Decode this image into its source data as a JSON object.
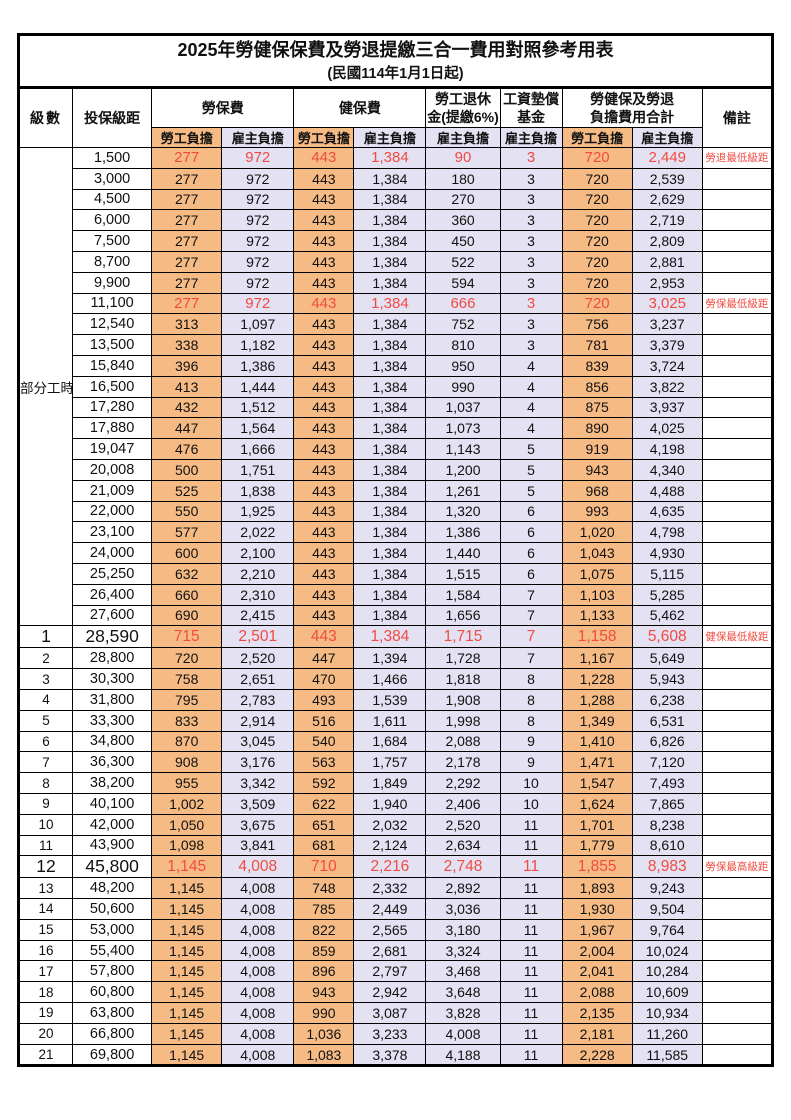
{
  "title": "2025年勞健保保費及勞退提繳三合一費用對照參考用表",
  "subtitle": "(民國114年1月1日起)",
  "colors": {
    "employee_bg": "#F6BB84",
    "employer_bg": "#E3E1F2",
    "highlight_red": "#F14B41",
    "border": "#000000"
  },
  "header": {
    "level": "級數",
    "bracket": "投保級距",
    "labor_ins": "勞保費",
    "health_ins": "健保費",
    "pension_line1": "勞工退休",
    "pension_line2": "金(提繳6%)",
    "arrears_line1": "工資墊償",
    "arrears_line2": "基金",
    "total_line1": "勞健保及勞退",
    "total_line2": "負擔費用合計",
    "emp": "勞工負擔",
    "er": "雇主負擔",
    "note": "備註"
  },
  "part_time_label": "部分工時",
  "part_time_rowspan": 23,
  "rows": [
    {
      "level": "",
      "bracket": "1,500",
      "li_emp": "277",
      "li_er": "972",
      "hi_emp": "443",
      "hi_er": "1,384",
      "pension": "90",
      "arrears": "3",
      "tot_emp": "720",
      "tot_er": "2,449",
      "note": "勞退最低級距",
      "red": true,
      "key": false
    },
    {
      "level": "",
      "bracket": "3,000",
      "li_emp": "277",
      "li_er": "972",
      "hi_emp": "443",
      "hi_er": "1,384",
      "pension": "180",
      "arrears": "3",
      "tot_emp": "720",
      "tot_er": "2,539",
      "note": "",
      "red": false,
      "key": false
    },
    {
      "level": "",
      "bracket": "4,500",
      "li_emp": "277",
      "li_er": "972",
      "hi_emp": "443",
      "hi_er": "1,384",
      "pension": "270",
      "arrears": "3",
      "tot_emp": "720",
      "tot_er": "2,629",
      "note": "",
      "red": false,
      "key": false
    },
    {
      "level": "",
      "bracket": "6,000",
      "li_emp": "277",
      "li_er": "972",
      "hi_emp": "443",
      "hi_er": "1,384",
      "pension": "360",
      "arrears": "3",
      "tot_emp": "720",
      "tot_er": "2,719",
      "note": "",
      "red": false,
      "key": false
    },
    {
      "level": "",
      "bracket": "7,500",
      "li_emp": "277",
      "li_er": "972",
      "hi_emp": "443",
      "hi_er": "1,384",
      "pension": "450",
      "arrears": "3",
      "tot_emp": "720",
      "tot_er": "2,809",
      "note": "",
      "red": false,
      "key": false
    },
    {
      "level": "",
      "bracket": "8,700",
      "li_emp": "277",
      "li_er": "972",
      "hi_emp": "443",
      "hi_er": "1,384",
      "pension": "522",
      "arrears": "3",
      "tot_emp": "720",
      "tot_er": "2,881",
      "note": "",
      "red": false,
      "key": false
    },
    {
      "level": "",
      "bracket": "9,900",
      "li_emp": "277",
      "li_er": "972",
      "hi_emp": "443",
      "hi_er": "1,384",
      "pension": "594",
      "arrears": "3",
      "tot_emp": "720",
      "tot_er": "2,953",
      "note": "",
      "red": false,
      "key": false
    },
    {
      "level": "",
      "bracket": "11,100",
      "li_emp": "277",
      "li_er": "972",
      "hi_emp": "443",
      "hi_er": "1,384",
      "pension": "666",
      "arrears": "3",
      "tot_emp": "720",
      "tot_er": "3,025",
      "note": "勞保最低級距",
      "red": true,
      "key": false
    },
    {
      "level": "",
      "bracket": "12,540",
      "li_emp": "313",
      "li_er": "1,097",
      "hi_emp": "443",
      "hi_er": "1,384",
      "pension": "752",
      "arrears": "3",
      "tot_emp": "756",
      "tot_er": "3,237",
      "note": "",
      "red": false,
      "key": false
    },
    {
      "level": "",
      "bracket": "13,500",
      "li_emp": "338",
      "li_er": "1,182",
      "hi_emp": "443",
      "hi_er": "1,384",
      "pension": "810",
      "arrears": "3",
      "tot_emp": "781",
      "tot_er": "3,379",
      "note": "",
      "red": false,
      "key": false
    },
    {
      "level": "",
      "bracket": "15,840",
      "li_emp": "396",
      "li_er": "1,386",
      "hi_emp": "443",
      "hi_er": "1,384",
      "pension": "950",
      "arrears": "4",
      "tot_emp": "839",
      "tot_er": "3,724",
      "note": "",
      "red": false,
      "key": false
    },
    {
      "level": "",
      "bracket": "16,500",
      "li_emp": "413",
      "li_er": "1,444",
      "hi_emp": "443",
      "hi_er": "1,384",
      "pension": "990",
      "arrears": "4",
      "tot_emp": "856",
      "tot_er": "3,822",
      "note": "",
      "red": false,
      "key": false
    },
    {
      "level": "",
      "bracket": "17,280",
      "li_emp": "432",
      "li_er": "1,512",
      "hi_emp": "443",
      "hi_er": "1,384",
      "pension": "1,037",
      "arrears": "4",
      "tot_emp": "875",
      "tot_er": "3,937",
      "note": "",
      "red": false,
      "key": false
    },
    {
      "level": "",
      "bracket": "17,880",
      "li_emp": "447",
      "li_er": "1,564",
      "hi_emp": "443",
      "hi_er": "1,384",
      "pension": "1,073",
      "arrears": "4",
      "tot_emp": "890",
      "tot_er": "4,025",
      "note": "",
      "red": false,
      "key": false
    },
    {
      "level": "",
      "bracket": "19,047",
      "li_emp": "476",
      "li_er": "1,666",
      "hi_emp": "443",
      "hi_er": "1,384",
      "pension": "1,143",
      "arrears": "5",
      "tot_emp": "919",
      "tot_er": "4,198",
      "note": "",
      "red": false,
      "key": false
    },
    {
      "level": "",
      "bracket": "20,008",
      "li_emp": "500",
      "li_er": "1,751",
      "hi_emp": "443",
      "hi_er": "1,384",
      "pension": "1,200",
      "arrears": "5",
      "tot_emp": "943",
      "tot_er": "4,340",
      "note": "",
      "red": false,
      "key": false
    },
    {
      "level": "",
      "bracket": "21,009",
      "li_emp": "525",
      "li_er": "1,838",
      "hi_emp": "443",
      "hi_er": "1,384",
      "pension": "1,261",
      "arrears": "5",
      "tot_emp": "968",
      "tot_er": "4,488",
      "note": "",
      "red": false,
      "key": false
    },
    {
      "level": "",
      "bracket": "22,000",
      "li_emp": "550",
      "li_er": "1,925",
      "hi_emp": "443",
      "hi_er": "1,384",
      "pension": "1,320",
      "arrears": "6",
      "tot_emp": "993",
      "tot_er": "4,635",
      "note": "",
      "red": false,
      "key": false
    },
    {
      "level": "",
      "bracket": "23,100",
      "li_emp": "577",
      "li_er": "2,022",
      "hi_emp": "443",
      "hi_er": "1,384",
      "pension": "1,386",
      "arrears": "6",
      "tot_emp": "1,020",
      "tot_er": "4,798",
      "note": "",
      "red": false,
      "key": false
    },
    {
      "level": "",
      "bracket": "24,000",
      "li_emp": "600",
      "li_er": "2,100",
      "hi_emp": "443",
      "hi_er": "1,384",
      "pension": "1,440",
      "arrears": "6",
      "tot_emp": "1,043",
      "tot_er": "4,930",
      "note": "",
      "red": false,
      "key": false
    },
    {
      "level": "",
      "bracket": "25,250",
      "li_emp": "632",
      "li_er": "2,210",
      "hi_emp": "443",
      "hi_er": "1,384",
      "pension": "1,515",
      "arrears": "6",
      "tot_emp": "1,075",
      "tot_er": "5,115",
      "note": "",
      "red": false,
      "key": false
    },
    {
      "level": "",
      "bracket": "26,400",
      "li_emp": "660",
      "li_er": "2,310",
      "hi_emp": "443",
      "hi_er": "1,384",
      "pension": "1,584",
      "arrears": "7",
      "tot_emp": "1,103",
      "tot_er": "5,285",
      "note": "",
      "red": false,
      "key": false
    },
    {
      "level": "",
      "bracket": "27,600",
      "li_emp": "690",
      "li_er": "2,415",
      "hi_emp": "443",
      "hi_er": "1,384",
      "pension": "1,656",
      "arrears": "7",
      "tot_emp": "1,133",
      "tot_er": "5,462",
      "note": "",
      "red": false,
      "key": false
    },
    {
      "level": "1",
      "bracket": "28,590",
      "li_emp": "715",
      "li_er": "2,501",
      "hi_emp": "443",
      "hi_er": "1,384",
      "pension": "1,715",
      "arrears": "7",
      "tot_emp": "1,158",
      "tot_er": "5,608",
      "note": "健保最低級距",
      "red": true,
      "key": true
    },
    {
      "level": "2",
      "bracket": "28,800",
      "li_emp": "720",
      "li_er": "2,520",
      "hi_emp": "447",
      "hi_er": "1,394",
      "pension": "1,728",
      "arrears": "7",
      "tot_emp": "1,167",
      "tot_er": "5,649",
      "note": "",
      "red": false,
      "key": false
    },
    {
      "level": "3",
      "bracket": "30,300",
      "li_emp": "758",
      "li_er": "2,651",
      "hi_emp": "470",
      "hi_er": "1,466",
      "pension": "1,818",
      "arrears": "8",
      "tot_emp": "1,228",
      "tot_er": "5,943",
      "note": "",
      "red": false,
      "key": false
    },
    {
      "level": "4",
      "bracket": "31,800",
      "li_emp": "795",
      "li_er": "2,783",
      "hi_emp": "493",
      "hi_er": "1,539",
      "pension": "1,908",
      "arrears": "8",
      "tot_emp": "1,288",
      "tot_er": "6,238",
      "note": "",
      "red": false,
      "key": false
    },
    {
      "level": "5",
      "bracket": "33,300",
      "li_emp": "833",
      "li_er": "2,914",
      "hi_emp": "516",
      "hi_er": "1,611",
      "pension": "1,998",
      "arrears": "8",
      "tot_emp": "1,349",
      "tot_er": "6,531",
      "note": "",
      "red": false,
      "key": false
    },
    {
      "level": "6",
      "bracket": "34,800",
      "li_emp": "870",
      "li_er": "3,045",
      "hi_emp": "540",
      "hi_er": "1,684",
      "pension": "2,088",
      "arrears": "9",
      "tot_emp": "1,410",
      "tot_er": "6,826",
      "note": "",
      "red": false,
      "key": false
    },
    {
      "level": "7",
      "bracket": "36,300",
      "li_emp": "908",
      "li_er": "3,176",
      "hi_emp": "563",
      "hi_er": "1,757",
      "pension": "2,178",
      "arrears": "9",
      "tot_emp": "1,471",
      "tot_er": "7,120",
      "note": "",
      "red": false,
      "key": false
    },
    {
      "level": "8",
      "bracket": "38,200",
      "li_emp": "955",
      "li_er": "3,342",
      "hi_emp": "592",
      "hi_er": "1,849",
      "pension": "2,292",
      "arrears": "10",
      "tot_emp": "1,547",
      "tot_er": "7,493",
      "note": "",
      "red": false,
      "key": false
    },
    {
      "level": "9",
      "bracket": "40,100",
      "li_emp": "1,002",
      "li_er": "3,509",
      "hi_emp": "622",
      "hi_er": "1,940",
      "pension": "2,406",
      "arrears": "10",
      "tot_emp": "1,624",
      "tot_er": "7,865",
      "note": "",
      "red": false,
      "key": false
    },
    {
      "level": "10",
      "bracket": "42,000",
      "li_emp": "1,050",
      "li_er": "3,675",
      "hi_emp": "651",
      "hi_er": "2,032",
      "pension": "2,520",
      "arrears": "11",
      "tot_emp": "1,701",
      "tot_er": "8,238",
      "note": "",
      "red": false,
      "key": false
    },
    {
      "level": "11",
      "bracket": "43,900",
      "li_emp": "1,098",
      "li_er": "3,841",
      "hi_emp": "681",
      "hi_er": "2,124",
      "pension": "2,634",
      "arrears": "11",
      "tot_emp": "1,779",
      "tot_er": "8,610",
      "note": "",
      "red": false,
      "key": false
    },
    {
      "level": "12",
      "bracket": "45,800",
      "li_emp": "1,145",
      "li_er": "4,008",
      "hi_emp": "710",
      "hi_er": "2,216",
      "pension": "2,748",
      "arrears": "11",
      "tot_emp": "1,855",
      "tot_er": "8,983",
      "note": "勞保最高級距",
      "red": true,
      "key": true
    },
    {
      "level": "13",
      "bracket": "48,200",
      "li_emp": "1,145",
      "li_er": "4,008",
      "hi_emp": "748",
      "hi_er": "2,332",
      "pension": "2,892",
      "arrears": "11",
      "tot_emp": "1,893",
      "tot_er": "9,243",
      "note": "",
      "red": false,
      "key": false
    },
    {
      "level": "14",
      "bracket": "50,600",
      "li_emp": "1,145",
      "li_er": "4,008",
      "hi_emp": "785",
      "hi_er": "2,449",
      "pension": "3,036",
      "arrears": "11",
      "tot_emp": "1,930",
      "tot_er": "9,504",
      "note": "",
      "red": false,
      "key": false
    },
    {
      "level": "15",
      "bracket": "53,000",
      "li_emp": "1,145",
      "li_er": "4,008",
      "hi_emp": "822",
      "hi_er": "2,565",
      "pension": "3,180",
      "arrears": "11",
      "tot_emp": "1,967",
      "tot_er": "9,764",
      "note": "",
      "red": false,
      "key": false
    },
    {
      "level": "16",
      "bracket": "55,400",
      "li_emp": "1,145",
      "li_er": "4,008",
      "hi_emp": "859",
      "hi_er": "2,681",
      "pension": "3,324",
      "arrears": "11",
      "tot_emp": "2,004",
      "tot_er": "10,024",
      "note": "",
      "red": false,
      "key": false
    },
    {
      "level": "17",
      "bracket": "57,800",
      "li_emp": "1,145",
      "li_er": "4,008",
      "hi_emp": "896",
      "hi_er": "2,797",
      "pension": "3,468",
      "arrears": "11",
      "tot_emp": "2,041",
      "tot_er": "10,284",
      "note": "",
      "red": false,
      "key": false
    },
    {
      "level": "18",
      "bracket": "60,800",
      "li_emp": "1,145",
      "li_er": "4,008",
      "hi_emp": "943",
      "hi_er": "2,942",
      "pension": "3,648",
      "arrears": "11",
      "tot_emp": "2,088",
      "tot_er": "10,609",
      "note": "",
      "red": false,
      "key": false
    },
    {
      "level": "19",
      "bracket": "63,800",
      "li_emp": "1,145",
      "li_er": "4,008",
      "hi_emp": "990",
      "hi_er": "3,087",
      "pension": "3,828",
      "arrears": "11",
      "tot_emp": "2,135",
      "tot_er": "10,934",
      "note": "",
      "red": false,
      "key": false
    },
    {
      "level": "20",
      "bracket": "66,800",
      "li_emp": "1,145",
      "li_er": "4,008",
      "hi_emp": "1,036",
      "hi_er": "3,233",
      "pension": "4,008",
      "arrears": "11",
      "tot_emp": "2,181",
      "tot_er": "11,260",
      "note": "",
      "red": false,
      "key": false
    },
    {
      "level": "21",
      "bracket": "69,800",
      "li_emp": "1,145",
      "li_er": "4,008",
      "hi_emp": "1,083",
      "hi_er": "3,378",
      "pension": "4,188",
      "arrears": "11",
      "tot_emp": "2,228",
      "tot_er": "11,585",
      "note": "",
      "red": false,
      "key": false
    }
  ]
}
